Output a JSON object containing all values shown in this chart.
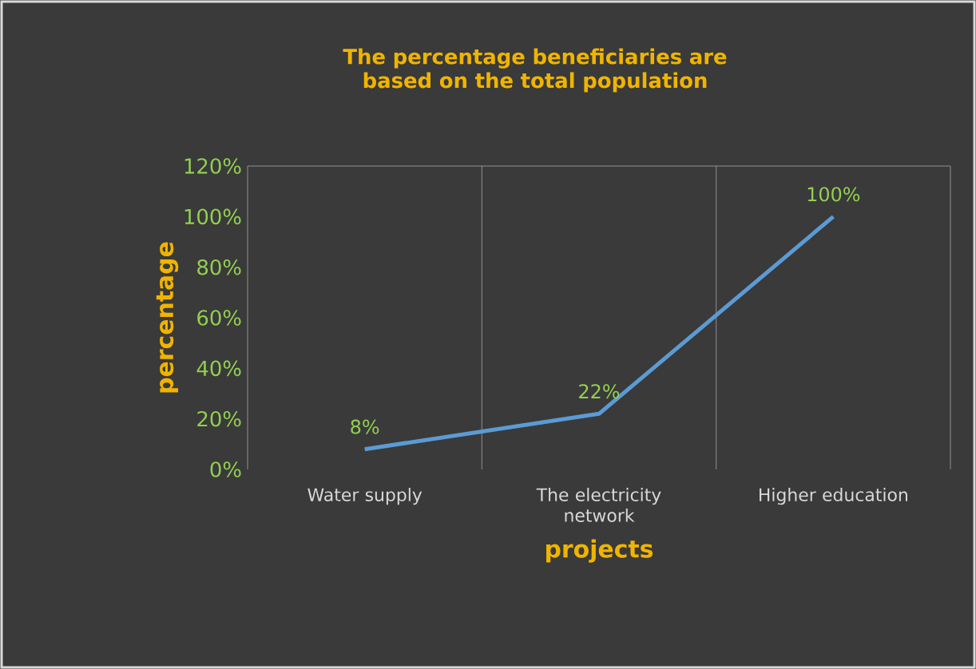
{
  "chart_data": {
    "type": "line",
    "title": "The percentage beneficiaries are based on the total population",
    "xlabel": "projects",
    "ylabel": "percentage",
    "categories": [
      "Water supply",
      "The electricity network",
      "Higher education"
    ],
    "series": [
      {
        "color": "#5b9bd5",
        "values": [
          8,
          22,
          100
        ]
      }
    ],
    "ylim": [
      0,
      120
    ],
    "yticks": [
      {
        "value": 0,
        "label": "0%"
      },
      {
        "value": 20,
        "label": "20%"
      },
      {
        "value": 40,
        "label": "40%"
      },
      {
        "value": 60,
        "label": "60%"
      },
      {
        "value": 80,
        "label": "80%"
      },
      {
        "value": 100,
        "label": "100%"
      },
      {
        "value": 120,
        "label": "120%"
      }
    ],
    "value_labels": [
      "8%",
      "22%",
      "100%"
    ],
    "grid": "x",
    "marker": "none",
    "line_style": "solid"
  }
}
